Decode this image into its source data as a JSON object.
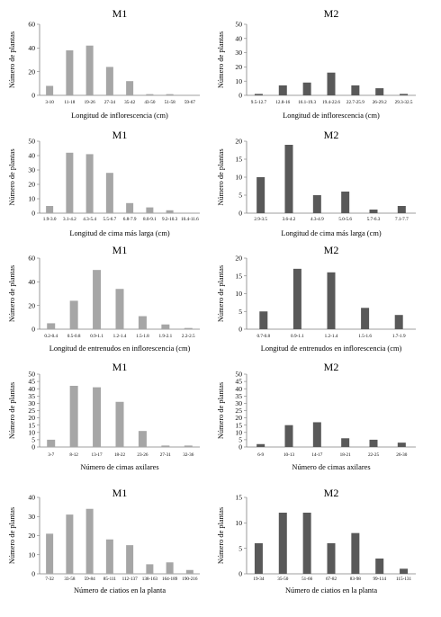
{
  "figure": {
    "panels": [
      {
        "id": "m1-inflorescencia",
        "title": "M1",
        "xlabel": "Longitud de inflorescencia (cm)",
        "ylabel": "Número de plantas",
        "color": "#a6a6a6"
      },
      {
        "id": "m2-inflorescencia",
        "title": "M2",
        "xlabel": "Longitud de inflorescencia (cm)",
        "ylabel": "Número de plantas",
        "color": "#595959"
      },
      {
        "id": "m1-cima",
        "title": "M1",
        "xlabel": "Longitud de cima más larga (cm)",
        "ylabel": "Número de plantas",
        "color": "#a6a6a6"
      },
      {
        "id": "m2-cima",
        "title": "M2",
        "xlabel": "Longitud de cima más larga (cm)",
        "ylabel": "Número de plantas",
        "color": "#595959"
      },
      {
        "id": "m1-entrenudos",
        "title": "M1",
        "xlabel": "Longitud de entrenudos en inflorescencia (cm)",
        "ylabel": "Número de plantas",
        "color": "#a6a6a6"
      },
      {
        "id": "m2-entrenudos",
        "title": "M2",
        "xlabel": "Longitud de entrenudos en inflorescencia (cm)",
        "ylabel": "Número de plantas",
        "color": "#595959"
      },
      {
        "id": "m1-cimas-axilares",
        "title": "M1",
        "xlabel": "Número de cimas axilares",
        "ylabel": "Número de plantas",
        "color": "#a6a6a6"
      },
      {
        "id": "m2-cimas-axilares",
        "title": "M2",
        "xlabel": "Número de cimas axilares",
        "ylabel": "Número de plantas",
        "color": "#595959"
      },
      {
        "id": "m1-ciatios",
        "title": "M1",
        "xlabel": "Número de ciatios en la planta",
        "ylabel": "Número de plantas",
        "color": "#a6a6a6"
      },
      {
        "id": "m2-ciatios",
        "title": "M2",
        "xlabel": "Número de ciatios en la planta",
        "ylabel": "Número de plantas",
        "color": "#595959"
      }
    ]
  },
  "chart_data": [
    {
      "type": "bar",
      "title": "M1",
      "xlabel": "Longitud de inflorescencia (cm)",
      "ylabel": "Número de plantas",
      "categories": [
        "3-10",
        "11-18",
        "19-26",
        "27-34",
        "35-42",
        "43-50",
        "51-58",
        "59-67"
      ],
      "values": [
        8,
        38,
        42,
        24,
        12,
        1,
        1,
        0
      ],
      "ylim": [
        0,
        60
      ],
      "yticks": [
        0,
        20,
        40,
        60
      ],
      "grid": false
    },
    {
      "type": "bar",
      "title": "M2",
      "xlabel": "Longitud de inflorescencia (cm)",
      "ylabel": "Número de plantas",
      "categories": [
        "9.5-12.7",
        "12.8-16",
        "16.1-19.3",
        "19.4-22.6",
        "22.7-25.9",
        "26-29.2",
        "29.3-32.5"
      ],
      "values": [
        1,
        7,
        9,
        16,
        7,
        5,
        1
      ],
      "ylim": [
        0,
        50
      ],
      "yticks": [
        0,
        10,
        20,
        30,
        40,
        50
      ],
      "grid": false
    },
    {
      "type": "bar",
      "title": "M1",
      "xlabel": "Longitud de cima más larga (cm)",
      "ylabel": "Número de plantas",
      "categories": [
        "1.9-3.0",
        "3.1-4.2",
        "4.3-5.4",
        "5.5-6.7",
        "6.8-7.9",
        "8.0-9.1",
        "9.2-10.3",
        "10.4-11.6"
      ],
      "values": [
        5,
        42,
        41,
        28,
        7,
        4,
        2,
        0
      ],
      "ylim": [
        0,
        50
      ],
      "yticks": [
        0,
        10,
        20,
        30,
        40,
        50
      ],
      "grid": false
    },
    {
      "type": "bar",
      "title": "M2",
      "xlabel": "Longitud de cima más larga (cm)",
      "ylabel": "Número de plantas",
      "categories": [
        "2.9-3.5",
        "3.6-4.2",
        "4.3-4.9",
        "5.0-5.6",
        "5.7-6.3",
        "7.1-7.7"
      ],
      "values": [
        10,
        19,
        5,
        6,
        1,
        2
      ],
      "ylim": [
        0,
        20
      ],
      "yticks": [
        0,
        5,
        10,
        15,
        20
      ],
      "grid": false
    },
    {
      "type": "bar",
      "title": "M1",
      "xlabel": "Longitud de entrenudos en inflorescencia (cm)",
      "ylabel": "Número de plantas",
      "categories": [
        "0.2-0.4",
        "0.5-0.8",
        "0.9-1.1",
        "1.2-1.4",
        "1.5-1.8",
        "1.9-2.1",
        "2.2-2.5"
      ],
      "values": [
        5,
        24,
        50,
        34,
        11,
        4,
        1
      ],
      "ylim": [
        0,
        60
      ],
      "yticks": [
        0,
        20,
        40,
        60
      ],
      "grid": false
    },
    {
      "type": "bar",
      "title": "M2",
      "xlabel": "Longitud de entrenudos en inflorescencia (cm)",
      "ylabel": "Número de plantas",
      "categories": [
        "0.7-0.8",
        "0.9-1.1",
        "1.2-1.4",
        "1.5-1.6",
        "1.7-1.9"
      ],
      "values": [
        5,
        17,
        16,
        6,
        4
      ],
      "ylim": [
        0,
        20
      ],
      "yticks": [
        0,
        5,
        10,
        15,
        20
      ],
      "grid": false
    },
    {
      "type": "bar",
      "title": "M1",
      "xlabel": "Número de cimas axilares",
      "ylabel": "Número de plantas",
      "categories": [
        "3-7",
        "8-12",
        "13-17",
        "18-22",
        "23-26",
        "27-31",
        "32-36"
      ],
      "values": [
        5,
        42,
        41,
        31,
        11,
        1,
        1
      ],
      "ylim": [
        0,
        50
      ],
      "yticks": [
        0,
        5,
        10,
        15,
        20,
        25,
        30,
        35,
        40,
        45,
        50
      ],
      "grid": false
    },
    {
      "type": "bar",
      "title": "M2",
      "xlabel": "Número de cimas axilares",
      "ylabel": "Número de plantas",
      "categories": [
        "6-9",
        "10-13",
        "14-17",
        "18-21",
        "22-25",
        "26-30"
      ],
      "values": [
        2,
        15,
        17,
        6,
        5,
        3
      ],
      "ylim": [
        0,
        50
      ],
      "yticks": [
        0,
        5,
        10,
        15,
        20,
        25,
        30,
        35,
        40,
        45,
        50
      ],
      "grid": false
    },
    {
      "type": "bar",
      "title": "M1",
      "xlabel": "Número de ciatios en la planta",
      "ylabel": "Número de plantas",
      "categories": [
        "7-32",
        "33-58",
        "59-84",
        "85-111",
        "112-137",
        "138-163",
        "164-189",
        "190-216"
      ],
      "values": [
        21,
        31,
        34,
        18,
        15,
        5,
        6,
        2
      ],
      "ylim": [
        0,
        40
      ],
      "yticks": [
        0,
        10,
        20,
        30,
        40
      ],
      "grid": false
    },
    {
      "type": "bar",
      "title": "M2",
      "xlabel": "Número de ciatios en la planta",
      "ylabel": "Número de plantas",
      "categories": [
        "19-34",
        "35-50",
        "51-66",
        "67-82",
        "83-98",
        "99-114",
        "115-131"
      ],
      "values": [
        6,
        12,
        12,
        6,
        8,
        3,
        1
      ],
      "ylim": [
        0,
        15
      ],
      "yticks": [
        0,
        5,
        10,
        15
      ],
      "grid": false
    }
  ]
}
